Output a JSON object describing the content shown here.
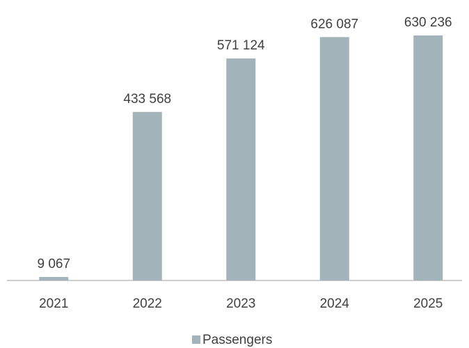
{
  "chart_data": {
    "type": "bar",
    "categories": [
      "2021",
      "2022",
      "2023",
      "2024",
      "2025"
    ],
    "series": [
      {
        "name": "Passengers",
        "color": "#a2b4ba",
        "values": [
          9067,
          433568,
          571124,
          626087,
          630236
        ],
        "value_labels": [
          "9 067",
          "433 568",
          "571 124",
          "626 087",
          "630 236"
        ]
      }
    ],
    "ylim": [
      0,
      700000
    ],
    "legend": "bottom"
  }
}
